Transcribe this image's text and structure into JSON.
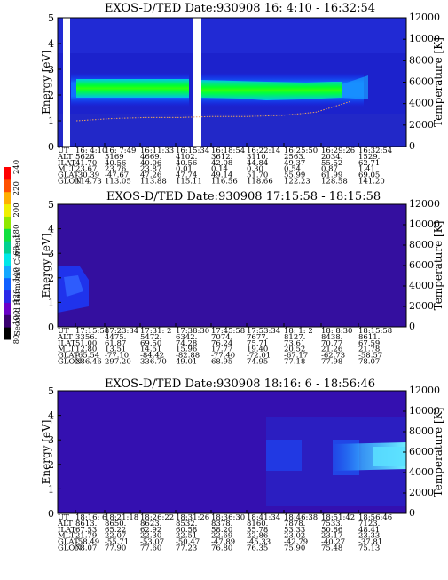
{
  "colorbar": {
    "label": "Second Harmonic Current",
    "ticks": [
      "80",
      "100",
      "120",
      "140",
      "160",
      "180",
      "200",
      "220",
      "240"
    ],
    "colors": [
      "#000000",
      "#3a0070",
      "#6a00c8",
      "#2a28e8",
      "#1060ff",
      "#14a8ff",
      "#00e8e8",
      "#00d090",
      "#10e040",
      "#90e800",
      "#f0f000",
      "#ffb000",
      "#ff5000",
      "#ff0000"
    ]
  },
  "chart_data": [
    {
      "type": "heatmap",
      "title": "EXOS-D/TED   Date:930908   16: 4:10 - 16:32:54",
      "ylabel": "Energy [eV]",
      "y2label": "Temperature [K]",
      "ylim": [
        0,
        5
      ],
      "y_ticks": [
        "0",
        "1",
        "2",
        "3",
        "4",
        "5"
      ],
      "y2lim": [
        0,
        12000
      ],
      "y2_ticks": [
        "0",
        "2000",
        "4000",
        "6000",
        "8000",
        "10000",
        "12000"
      ],
      "data_gaps_ut": [
        [
          "16:4:40",
          "16:5:30"
        ],
        [
          "16:14:20",
          "16:15:20"
        ]
      ],
      "band": {
        "energy_ev": [
          1.7,
          2.6
        ],
        "intensity": "high"
      },
      "temperature_trace_k": [
        2400,
        2600,
        2700,
        2700,
        2800,
        2800,
        2900,
        3200,
        4200
      ],
      "table": {
        "row_labels": [
          "UT",
          "ALT",
          "ILAT",
          "MLT",
          "GLAT",
          "GLON"
        ],
        "columns": [
          [
            "16: 4:10",
            "5628",
            "41.70",
            "23.67",
            "-30.39",
            "114.73"
          ],
          [
            "16: 7:49",
            "5169",
            "40.56",
            "23.76",
            "-47.67",
            "113.05"
          ],
          [
            "16:11:33",
            "4669.",
            "40.06",
            "23.87",
            "47.26",
            "113.88"
          ],
          [
            "16:15:34",
            "4102.",
            "40.56",
            "0.01",
            "47.74",
            "115.11"
          ],
          [
            "16:18:54",
            "3612.",
            "42.08",
            "0.14",
            "49.14",
            "116.56"
          ],
          [
            "16:22:14",
            "3110.",
            "44.84",
            "0.30",
            "51.70",
            "118.66"
          ],
          [
            "16:25:50",
            "2563.",
            "49.37",
            "0.54",
            "55.99",
            "122.23"
          ],
          [
            "16:29:26",
            "2034.",
            "55.52",
            "0.87",
            "61.99",
            "128.58"
          ],
          [
            "16:32:54",
            "1529.",
            "62.71",
            "1.41",
            "69.05",
            "141.20"
          ]
        ]
      }
    },
    {
      "type": "heatmap",
      "title": "EXOS-D/TED   Date:930908   17:15:58 - 18:15:58",
      "ylabel": "Energy [eV]",
      "y2label": "Temperature [K]",
      "ylim": [
        0,
        5
      ],
      "y_ticks": [
        "0",
        "1",
        "2",
        "3",
        "4",
        "5"
      ],
      "y2lim": [
        0,
        12000
      ],
      "y2_ticks": [
        "0",
        "2000",
        "4000",
        "6000",
        "8000",
        "10000",
        "12000"
      ],
      "table": {
        "row_labels": [
          "UT",
          "ALT",
          "ILAT",
          "MLT",
          "GLAT",
          "GLON"
        ],
        "columns": [
          [
            "17:15:58",
            "3356.",
            "51.00",
            "12.80",
            "-65.54",
            "286.46"
          ],
          [
            "17:23:34",
            "4475.",
            "61.87",
            "13.51",
            "-77.10",
            "297.20"
          ],
          [
            "17:31: 2",
            "5472.",
            "69.50",
            "14.51",
            "-84.42",
            "336.70"
          ],
          [
            "17:38:30",
            "6342.",
            "74.28",
            "15.96",
            "-82.88",
            "49.01"
          ],
          [
            "17:45:58",
            "7074.",
            "76.24",
            "17.77",
            "-77.40",
            "68.95"
          ],
          [
            "17:53:34",
            "7677.",
            "75.71",
            "19.40",
            "-72.01",
            "74.95"
          ],
          [
            "18: 1: 2",
            "8127.",
            "73.61",
            "20.52",
            "-67.17",
            "77.18"
          ],
          [
            "18: 8:30",
            "8438.",
            "70.77",
            "21.26",
            "-62.73",
            "77.98"
          ],
          [
            "18:15:58",
            "8611.",
            "67.59",
            "21.78",
            "-58.57",
            "78.07"
          ]
        ]
      }
    },
    {
      "type": "heatmap",
      "title": "EXOS-D/TED   Date:930908   18:16: 6 - 18:56:46",
      "ylabel": "Energy [eV]",
      "y2label": "Temperature [K]",
      "ylim": [
        0,
        5
      ],
      "y_ticks": [
        "0",
        "1",
        "2",
        "3",
        "4",
        "5"
      ],
      "y2lim": [
        0,
        12000
      ],
      "y2_ticks": [
        "0",
        "2000",
        "4000",
        "6000",
        "8000",
        "10000",
        "12000"
      ],
      "table": {
        "row_labels": [
          "UT",
          "ALT",
          "ILAT",
          "MLT",
          "GLAT",
          "GLON"
        ],
        "columns": [
          [
            "18:16: 6",
            "8613.",
            "67.53",
            "21.79",
            "-58.49",
            "78.07"
          ],
          [
            "18:21:18",
            "8650.",
            "65.22",
            "22.07",
            "-55.71",
            "77.90"
          ],
          [
            "18:26:22",
            "8623.",
            "62.92",
            "22.30",
            "-53.07",
            "77.60"
          ],
          [
            "18:31:26",
            "8532.",
            "60.58",
            "22.51",
            "-50.47",
            "77.23"
          ],
          [
            "18:36:30",
            "8378.",
            "58.20",
            "22.69",
            "-47.89",
            "76.80"
          ],
          [
            "18:41:34",
            "8160.",
            "55.78",
            "22.86",
            "-45.33",
            "76.35"
          ],
          [
            "18:46:38",
            "7878.",
            "53.33",
            "23.02",
            "-42.79",
            "75.90"
          ],
          [
            "18:51:42",
            "7533.",
            "50.86",
            "23.17",
            "-40.27",
            "75.48"
          ],
          [
            "18:56:46",
            "7123.",
            "48.41",
            "23.33",
            "-37.81",
            "75.13"
          ]
        ]
      }
    }
  ]
}
